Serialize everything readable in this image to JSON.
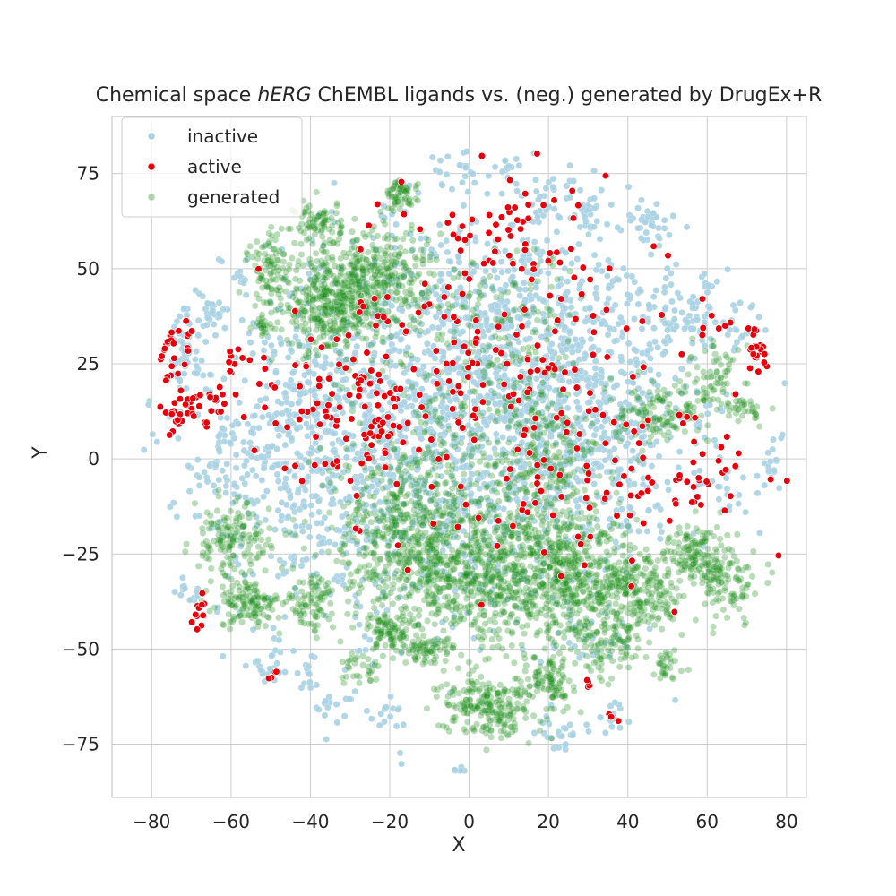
{
  "chart_data": {
    "type": "scatter",
    "title": {
      "prefix": "Chemical space ",
      "italic": "hERG",
      "suffix": " ChEMBL ligands vs. (neg.) generated by DrugEx+R"
    },
    "xlabel": "X",
    "ylabel": "Y",
    "xlim": [
      -90,
      85
    ],
    "ylim": [
      -89,
      90
    ],
    "xticks": [
      -80,
      -60,
      -40,
      -20,
      0,
      20,
      40,
      60,
      80
    ],
    "yticks": [
      -75,
      -50,
      -25,
      0,
      25,
      50,
      75
    ],
    "xtick_labels": [
      "−80",
      "−60",
      "−40",
      "−20",
      "0",
      "20",
      "40",
      "60",
      "80"
    ],
    "ytick_labels": [
      "−75",
      "−50",
      "−25",
      "0",
      "25",
      "50",
      "75"
    ],
    "grid": true,
    "legend_position": "top-left",
    "series": [
      {
        "name": "inactive",
        "color": "#a8d1e3",
        "clusters": [
          {
            "cx": -5,
            "cy": 10,
            "sx": 28,
            "sy": 26,
            "n": 1500
          },
          {
            "cx": 15,
            "cy": 30,
            "sx": 18,
            "sy": 18,
            "n": 450
          },
          {
            "cx": -40,
            "cy": 0,
            "sx": 12,
            "sy": 18,
            "n": 300
          },
          {
            "cx": 35,
            "cy": 5,
            "sx": 12,
            "sy": 14,
            "n": 220
          },
          {
            "cx": 55,
            "cy": 38,
            "sx": 7,
            "sy": 5,
            "n": 70
          },
          {
            "cx": 45,
            "cy": 62,
            "sx": 3,
            "sy": 3,
            "n": 35
          },
          {
            "cx": 20,
            "cy": 67,
            "sx": 4,
            "sy": 3,
            "n": 30
          },
          {
            "cx": 30,
            "cy": 65,
            "sx": 2,
            "sy": 2,
            "n": 20
          },
          {
            "cx": -65,
            "cy": 38,
            "sx": 3,
            "sy": 3,
            "n": 30
          },
          {
            "cx": -72,
            "cy": 25,
            "sx": 3,
            "sy": 5,
            "n": 40
          },
          {
            "cx": -62,
            "cy": -2,
            "sx": 4,
            "sy": 5,
            "n": 25
          },
          {
            "cx": -70,
            "cy": -35,
            "sx": 2,
            "sy": 2,
            "n": 12
          },
          {
            "cx": -50,
            "cy": -55,
            "sx": 3,
            "sy": 2,
            "n": 20
          },
          {
            "cx": -40,
            "cy": -57,
            "sx": 2,
            "sy": 2,
            "n": 12
          },
          {
            "cx": -35,
            "cy": -65,
            "sx": 3,
            "sy": 2,
            "n": 15
          },
          {
            "cx": -20,
            "cy": -68,
            "sx": 3,
            "sy": 3,
            "n": 15
          },
          {
            "cx": 23,
            "cy": -72,
            "sx": 3,
            "sy": 2,
            "n": 25
          },
          {
            "cx": 36,
            "cy": -68,
            "sx": 2,
            "sy": 1.5,
            "n": 12
          },
          {
            "cx": -2,
            "cy": -82,
            "sx": 1.5,
            "sy": 0.8,
            "n": 6
          },
          {
            "cx": 75,
            "cy": -3,
            "sx": 2,
            "sy": 3,
            "n": 15
          },
          {
            "cx": 65,
            "cy": -8,
            "sx": 3,
            "sy": 3,
            "n": 15
          },
          {
            "cx": 0,
            "cy": 75,
            "sx": 6,
            "sy": 3,
            "n": 20
          },
          {
            "cx": 10,
            "cy": 76,
            "sx": 2,
            "sy": 2,
            "n": 10
          },
          {
            "cx": -58,
            "cy": 47,
            "sx": 1,
            "sy": 1,
            "n": 8
          },
          {
            "cx": 68,
            "cy": 33,
            "sx": 2,
            "sy": 2,
            "n": 10
          },
          {
            "cx": 30,
            "cy": -48,
            "sx": 6,
            "sy": 3,
            "n": 25
          }
        ]
      },
      {
        "name": "active",
        "color": "#e8000b",
        "clusters": [
          {
            "cx": 5,
            "cy": 25,
            "sx": 22,
            "sy": 22,
            "n": 200
          },
          {
            "cx": -35,
            "cy": 10,
            "sx": 12,
            "sy": 12,
            "n": 60
          },
          {
            "cx": 40,
            "cy": -5,
            "sx": 15,
            "sy": 12,
            "n": 70
          },
          {
            "cx": -75,
            "cy": 28,
            "sx": 3,
            "sy": 4,
            "n": 25
          },
          {
            "cx": -72,
            "cy": 12,
            "sx": 3,
            "sy": 3,
            "n": 30
          },
          {
            "cx": -64,
            "cy": 16,
            "sx": 2,
            "sy": 2,
            "n": 12
          },
          {
            "cx": -68,
            "cy": -40,
            "sx": 1,
            "sy": 2,
            "n": 12
          },
          {
            "cx": 72,
            "cy": 28,
            "sx": 1.5,
            "sy": 3,
            "n": 22
          },
          {
            "cx": 10,
            "cy": 62,
            "sx": 10,
            "sy": 8,
            "n": 30
          },
          {
            "cx": -25,
            "cy": 22,
            "sx": 3,
            "sy": 3,
            "n": 15
          },
          {
            "cx": -22,
            "cy": 8,
            "sx": 4,
            "sy": 4,
            "n": 15
          },
          {
            "cx": 62,
            "cy": 35,
            "sx": 2,
            "sy": 2,
            "n": 6
          },
          {
            "cx": 55,
            "cy": -8,
            "sx": 3,
            "sy": 3,
            "n": 12
          },
          {
            "cx": 30,
            "cy": -60,
            "sx": 1,
            "sy": 1,
            "n": 4
          },
          {
            "cx": -50,
            "cy": -57,
            "sx": 1,
            "sy": 1,
            "n": 4
          },
          {
            "cx": 37,
            "cy": -68,
            "sx": 1,
            "sy": 1,
            "n": 3
          },
          {
            "cx": -60,
            "cy": 25,
            "sx": 2,
            "sy": 2,
            "n": 8
          }
        ]
      },
      {
        "name": "generated",
        "color": "#138a10",
        "clusters": [
          {
            "cx": -35,
            "cy": 40,
            "sx": 6,
            "sy": 6,
            "n": 380
          },
          {
            "cx": -22,
            "cy": 48,
            "sx": 7,
            "sy": 7,
            "n": 300
          },
          {
            "cx": -38,
            "cy": 62,
            "sx": 3,
            "sy": 3,
            "n": 80
          },
          {
            "cx": -17,
            "cy": 69,
            "sx": 2,
            "sy": 2,
            "n": 60
          },
          {
            "cx": -50,
            "cy": 50,
            "sx": 3,
            "sy": 5,
            "n": 90
          },
          {
            "cx": -60,
            "cy": -22,
            "sx": 5,
            "sy": 5,
            "n": 150
          },
          {
            "cx": -55,
            "cy": -38,
            "sx": 4,
            "sy": 3,
            "n": 120
          },
          {
            "cx": -40,
            "cy": -38,
            "sx": 3,
            "sy": 4,
            "n": 80
          },
          {
            "cx": -15,
            "cy": -20,
            "sx": 10,
            "sy": 12,
            "n": 550
          },
          {
            "cx": 5,
            "cy": -30,
            "sx": 12,
            "sy": 10,
            "n": 650
          },
          {
            "cx": 25,
            "cy": -30,
            "sx": 8,
            "sy": 8,
            "n": 350
          },
          {
            "cx": 42,
            "cy": -35,
            "sx": 6,
            "sy": 6,
            "n": 250
          },
          {
            "cx": 57,
            "cy": -25,
            "sx": 4,
            "sy": 4,
            "n": 120
          },
          {
            "cx": 65,
            "cy": -33,
            "sx": 4,
            "sy": 5,
            "n": 110
          },
          {
            "cx": 5,
            "cy": -65,
            "sx": 6,
            "sy": 4,
            "n": 220
          },
          {
            "cx": 20,
            "cy": -58,
            "sx": 3,
            "sy": 3,
            "n": 90
          },
          {
            "cx": 35,
            "cy": -50,
            "sx": 5,
            "sy": 4,
            "n": 100
          },
          {
            "cx": 48,
            "cy": 12,
            "sx": 6,
            "sy": 4,
            "n": 120
          },
          {
            "cx": 62,
            "cy": 20,
            "sx": 4,
            "sy": 5,
            "n": 70
          },
          {
            "cx": 70,
            "cy": 13,
            "sx": 2,
            "sy": 2,
            "n": 30
          },
          {
            "cx": 20,
            "cy": 0,
            "sx": 6,
            "sy": 12,
            "n": 200
          },
          {
            "cx": 5,
            "cy": 10,
            "sx": 15,
            "sy": 15,
            "n": 250
          },
          {
            "cx": -20,
            "cy": -45,
            "sx": 3,
            "sy": 3,
            "n": 80
          },
          {
            "cx": -10,
            "cy": -50,
            "sx": 3,
            "sy": 2,
            "n": 60
          },
          {
            "cx": 50,
            "cy": -55,
            "sx": 2,
            "sy": 2,
            "n": 30
          },
          {
            "cx": -52,
            "cy": 35,
            "sx": 1.5,
            "sy": 1.5,
            "n": 20
          },
          {
            "cx": -28,
            "cy": -55,
            "sx": 3,
            "sy": 2,
            "n": 30
          },
          {
            "cx": 10,
            "cy": 40,
            "sx": 8,
            "sy": 8,
            "n": 80
          }
        ]
      }
    ]
  }
}
